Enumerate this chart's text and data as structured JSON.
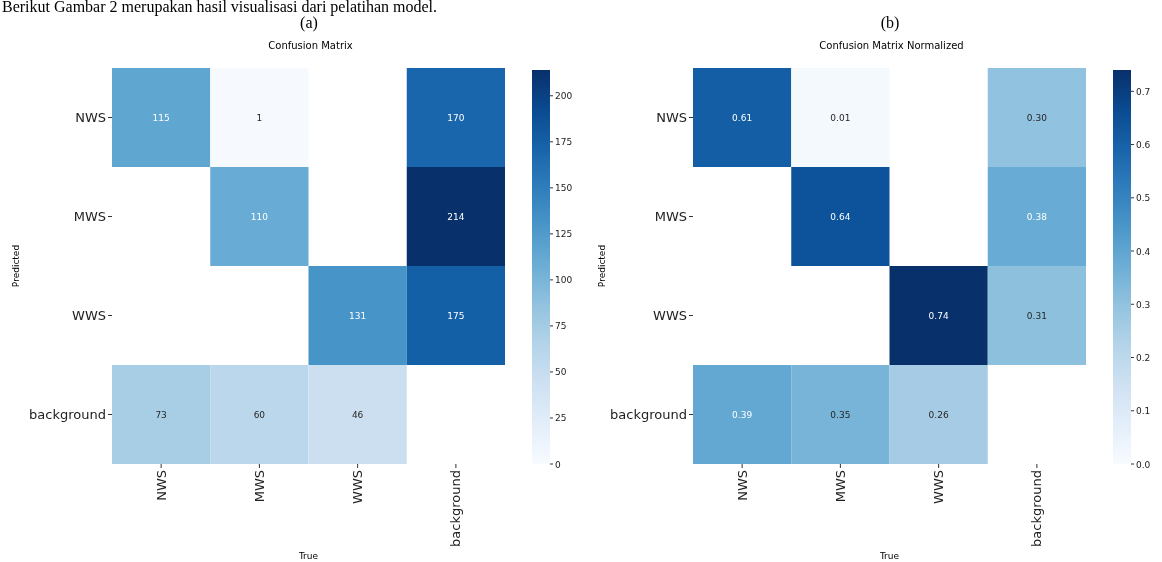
{
  "chart_data": [
    {
      "type": "heatmap",
      "title": "Confusion Matrix",
      "xlabel": "True",
      "ylabel": "Predicted",
      "annotations": [
        "Berikut Gambar 2 merupakan hasil visualisasi dari pelatihan model.",
        "(a)"
      ],
      "categories": [
        "NWS",
        "MWS",
        "WWS",
        "background"
      ],
      "y_categories": [
        "NWS",
        "MWS",
        "WWS",
        "background"
      ],
      "cells": [
        [
          115,
          1,
          null,
          170
        ],
        [
          null,
          110,
          null,
          214
        ],
        [
          null,
          null,
          131,
          175
        ],
        [
          73,
          60,
          46,
          null
        ]
      ],
      "clim": [
        0,
        214
      ],
      "cticks": [
        0,
        25,
        50,
        75,
        100,
        125,
        150,
        175,
        200
      ],
      "data_labels": true
    },
    {
      "type": "heatmap",
      "title": "Confusion Matrix Normalized",
      "xlabel": "True",
      "ylabel": "Predicted",
      "annotations": [
        "(b)"
      ],
      "categories": [
        "NWS",
        "MWS",
        "WWS",
        "background"
      ],
      "y_categories": [
        "NWS",
        "MWS",
        "WWS",
        "background"
      ],
      "cells": [
        [
          0.61,
          0.01,
          null,
          0.3
        ],
        [
          null,
          0.64,
          null,
          0.38
        ],
        [
          null,
          null,
          0.74,
          0.31
        ],
        [
          0.39,
          0.35,
          0.26,
          null
        ]
      ],
      "cell_labels": [
        [
          "0.61",
          "0.01",
          null,
          "0.30"
        ],
        [
          null,
          "0.64",
          null,
          "0.38"
        ],
        [
          null,
          null,
          "0.74",
          "0.31"
        ],
        [
          "0.39",
          "0.35",
          "0.26",
          null
        ]
      ],
      "clim": [
        0,
        0.74
      ],
      "cticks": [
        {
          "value": 0,
          "label": "0.0"
        },
        0.1,
        0.2,
        0.3,
        0.4,
        0.5,
        0.6,
        0.7
      ],
      "data_labels": true
    }
  ]
}
